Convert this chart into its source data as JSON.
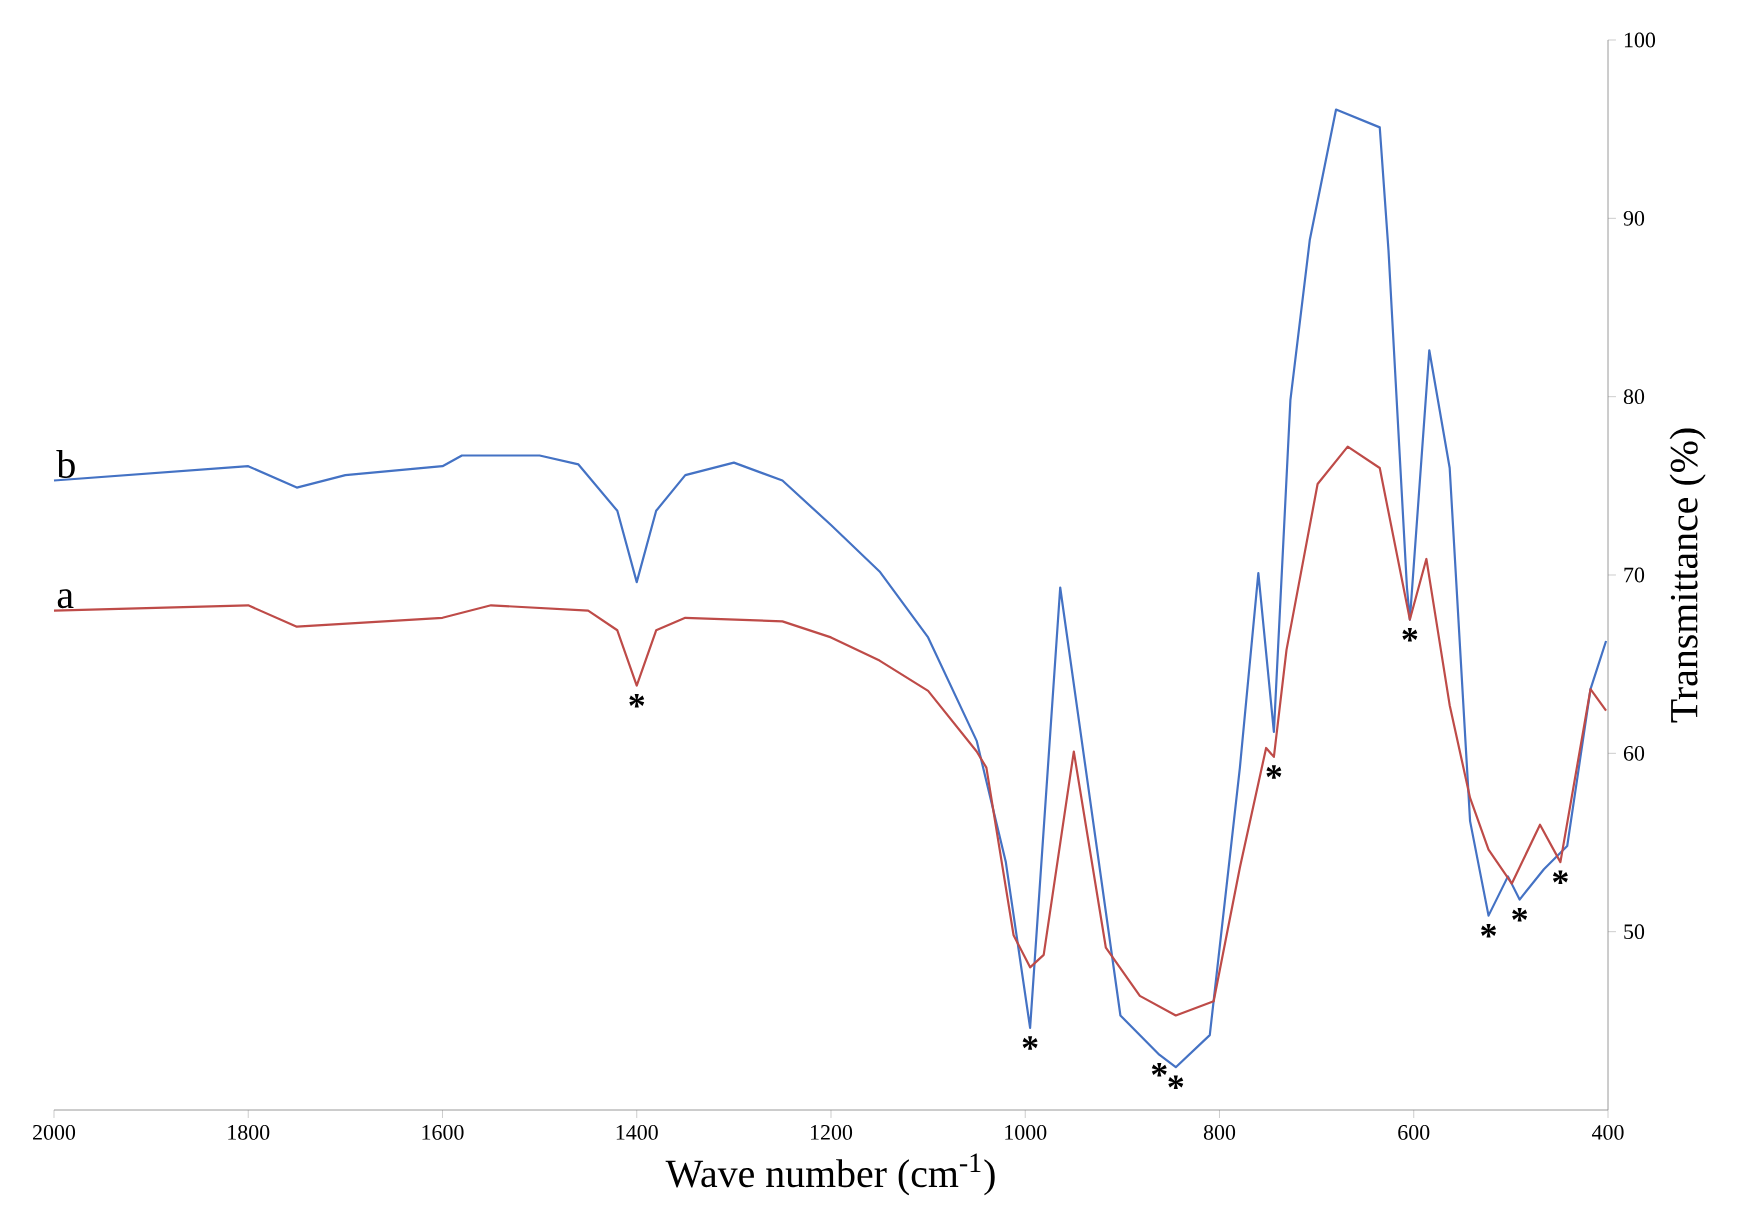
{
  "chart_data": {
    "type": "line",
    "xlabel": "Wave number (cm$^{-1}$)",
    "ylabel": "Transmittance (%)",
    "xlim": [
      2000,
      400
    ],
    "ylim": [
      40,
      100
    ],
    "xticks": [
      2000,
      1800,
      1600,
      1400,
      1200,
      1000,
      800,
      600,
      400
    ],
    "yticks": [
      50,
      60,
      70,
      80,
      90,
      100
    ],
    "marker": "none",
    "line_style": "solid",
    "series": [
      {
        "name": "b",
        "color": "#4472c4",
        "x": [
          2000,
          1800,
          1750,
          1700,
          1600,
          1580,
          1500,
          1460,
          1420,
          1400,
          1380,
          1350,
          1300,
          1250,
          1200,
          1150,
          1100,
          1050,
          1020,
          995,
          964,
          902,
          862,
          845,
          810,
          779,
          760,
          744,
          727,
          707,
          680,
          635,
          626,
          607,
          604,
          584,
          563,
          542,
          523,
          503,
          491,
          466,
          442,
          418,
          402
        ],
        "values": [
          75.3,
          76.1,
          74.9,
          75.6,
          76.1,
          76.7,
          76.7,
          76.2,
          73.6,
          69.6,
          73.6,
          75.6,
          76.3,
          75.3,
          72.8,
          70.2,
          66.5,
          60.7,
          53.9,
          44.6,
          69.3,
          45.3,
          43.1,
          42.4,
          44.2,
          59.2,
          70.1,
          61.2,
          79.8,
          88.8,
          96.1,
          95.1,
          88.2,
          69.3,
          67.5,
          82.6,
          76.0,
          56.2,
          50.9,
          53.1,
          51.8,
          53.5,
          54.8,
          63.6,
          66.3
        ]
      },
      {
        "name": "a",
        "color": "#be4b48",
        "x": [
          2000,
          1800,
          1750,
          1600,
          1550,
          1450,
          1420,
          1400,
          1380,
          1350,
          1250,
          1200,
          1150,
          1100,
          1050,
          1040,
          1012,
          995,
          981,
          950,
          917,
          882,
          845,
          806,
          779,
          752,
          744,
          731,
          699,
          668,
          635,
          604,
          587,
          563,
          542,
          523,
          499,
          470,
          449,
          418,
          402
        ],
        "values": [
          68.0,
          68.3,
          67.1,
          67.6,
          68.3,
          68.0,
          66.9,
          63.8,
          66.9,
          67.6,
          67.4,
          66.5,
          65.2,
          63.5,
          60.1,
          59.2,
          49.8,
          48.0,
          48.7,
          60.1,
          49.1,
          46.4,
          45.3,
          46.1,
          53.6,
          60.3,
          59.8,
          65.8,
          75.1,
          77.2,
          76.0,
          67.5,
          70.9,
          62.7,
          57.5,
          54.6,
          52.7,
          56.0,
          53.9,
          63.6,
          62.4
        ]
      }
    ],
    "annotations": [
      {
        "text": "*",
        "x": 1400,
        "y": 63.8
      },
      {
        "text": "*",
        "x": 995,
        "y": 44.6
      },
      {
        "text": "*",
        "x": 862,
        "y": 43.1
      },
      {
        "text": "*",
        "x": 845,
        "y": 42.4
      },
      {
        "text": "*",
        "x": 744,
        "y": 59.8
      },
      {
        "text": "*",
        "x": 604,
        "y": 67.5
      },
      {
        "text": "*",
        "x": 523,
        "y": 50.9
      },
      {
        "text": "*",
        "x": 491,
        "y": 51.8
      },
      {
        "text": "*",
        "x": 449,
        "y": 53.9
      }
    ]
  }
}
